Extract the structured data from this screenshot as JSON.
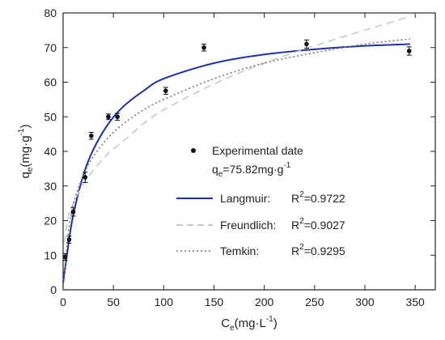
{
  "chart_data": {
    "type": "scatter",
    "title": "",
    "xlabel": {
      "main": "C",
      "sub": "e",
      "unit": "(mg·L",
      "unit_sup": "-1",
      "unit_close": ")"
    },
    "ylabel": {
      "main": "q",
      "sub": "e",
      "unit": "(mg·g",
      "unit_sup": "-1",
      "unit_close": ")"
    },
    "xlim": [
      0,
      370
    ],
    "ylim": [
      0,
      80
    ],
    "xticks": [
      0,
      50,
      100,
      150,
      200,
      250,
      300,
      350
    ],
    "yticks": [
      0,
      10,
      20,
      30,
      40,
      50,
      60,
      70,
      80
    ],
    "grid": false,
    "legend_position": "center-right",
    "series": [
      {
        "name": "Experimental date",
        "kind": "points",
        "color": "#111111",
        "x": [
          2,
          6,
          10,
          22,
          28,
          45,
          54,
          102,
          140,
          242,
          344
        ],
        "y": [
          9.5,
          14.5,
          22.5,
          32.5,
          44.5,
          50,
          50,
          57.5,
          70,
          71,
          69
        ],
        "err": [
          1.0,
          1.0,
          1.2,
          1.5,
          1.0,
          0.8,
          1.0,
          1.0,
          1.0,
          1.2,
          1.2
        ]
      },
      {
        "name": "Langmuir:",
        "kind": "line",
        "style": "solid",
        "color": "#1f2fa8",
        "x": [
          0,
          5,
          10,
          20,
          30,
          45,
          60,
          80,
          100,
          150,
          200,
          250,
          300,
          345
        ],
        "y": [
          2,
          12.5,
          21.5,
          33,
          40.5,
          48,
          53,
          57.5,
          61,
          65.5,
          68,
          69.5,
          70.5,
          71
        ]
      },
      {
        "name": "Freundlich:",
        "kind": "line",
        "style": "dashed",
        "color": "#c8c8c8",
        "x": [
          1,
          5,
          10,
          20,
          30,
          45,
          60,
          80,
          100,
          150,
          200,
          250,
          300,
          345
        ],
        "y": [
          13.5,
          21,
          25,
          30.5,
          34.5,
          39.5,
          43,
          48,
          52,
          59.5,
          65.5,
          70.5,
          75,
          79
        ]
      },
      {
        "name": "Temkin:",
        "kind": "line",
        "style": "dotted",
        "color": "#777777",
        "x": [
          1,
          5,
          10,
          20,
          30,
          45,
          60,
          80,
          100,
          150,
          200,
          250,
          300,
          345
        ],
        "y": [
          3,
          16,
          24.5,
          33,
          38.5,
          44,
          48,
          52,
          55,
          61,
          65.5,
          68.5,
          71,
          72.5
        ]
      }
    ],
    "annotations": {
      "qe_prefix": "q",
      "qe_sub": "e",
      "qe_value": "=75.82mg·g",
      "qe_sup": "-1",
      "r2": [
        {
          "prefix": "R",
          "sup": "2",
          "value": "=0.9722"
        },
        {
          "prefix": "R",
          "sup": "2",
          "value": "=0.9027"
        },
        {
          "prefix": "R",
          "sup": "2",
          "value": "=0.9295"
        }
      ]
    }
  }
}
